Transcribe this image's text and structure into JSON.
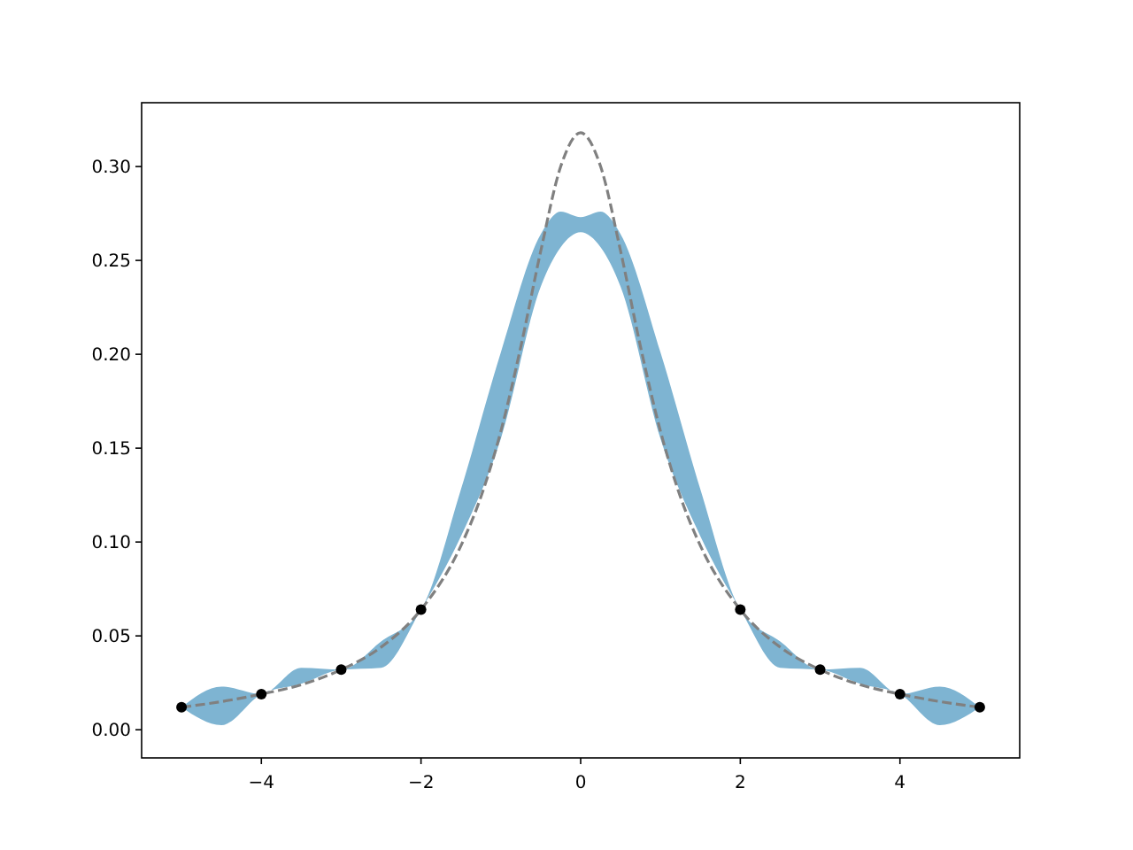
{
  "chart_data": {
    "type": "line",
    "xlim": [
      -5.5,
      5.5
    ],
    "ylim": [
      -0.015,
      0.334
    ],
    "xticks": [
      {
        "value": -4,
        "label": "−4"
      },
      {
        "value": -2,
        "label": "−2"
      },
      0,
      2,
      4
    ],
    "yticks": [
      {
        "value": 0,
        "label": "0.00"
      },
      {
        "value": 0.05,
        "label": "0.05"
      },
      {
        "value": 0.1,
        "label": "0.10"
      },
      {
        "value": 0.15,
        "label": "0.15"
      },
      {
        "value": 0.2,
        "label": "0.20"
      },
      {
        "value": 0.25,
        "label": "0.25"
      },
      {
        "value": 0.3,
        "label": "0.30"
      }
    ],
    "grid": false,
    "series": [
      {
        "color": "#7eb4d2",
        "x": [
          -5,
          -4.5,
          -4,
          -3.5,
          -3,
          -2.5,
          -2,
          -1.5,
          -1,
          -0.5,
          -0.25,
          0,
          0.25,
          0.5,
          1,
          1.5,
          2,
          2.5,
          3,
          3.5,
          4,
          4.5,
          5
        ],
        "values": [
          null,
          null,
          null,
          null,
          null,
          null,
          null,
          null,
          null,
          null,
          null,
          null,
          null,
          null,
          null,
          null,
          null,
          null,
          null,
          null,
          null,
          null,
          null
        ],
        "upper": [
          0.012,
          0.023,
          0.019,
          0.033,
          0.032,
          0.047,
          0.064,
          0.128,
          0.201,
          0.264,
          0.276,
          0.273,
          0.276,
          0.264,
          0.201,
          0.128,
          0.064,
          0.047,
          0.032,
          0.033,
          0.019,
          0.023,
          0.012
        ],
        "lower": [
          0.012,
          0.0025,
          0.019,
          0.0245,
          0.032,
          0.033,
          0.064,
          0.103,
          0.155,
          0.236,
          0.257,
          0.265,
          0.257,
          0.236,
          0.155,
          0.103,
          0.064,
          0.033,
          0.032,
          0.0245,
          0.019,
          0.0025,
          0.012
        ]
      },
      {
        "color": "#808080",
        "line_style": "dashed",
        "marker": "none",
        "x": [
          -5,
          -4.5,
          -4,
          -3.5,
          -3,
          -2.5,
          -2,
          -1.5,
          -1.25,
          -1,
          -0.75,
          -0.5,
          -0.25,
          0,
          0.25,
          0.5,
          0.75,
          1,
          1.25,
          1.5,
          2,
          2.5,
          3,
          3.5,
          4,
          4.5,
          5
        ],
        "values": [
          0.012,
          0.015,
          0.019,
          0.024,
          0.032,
          0.044,
          0.064,
          0.098,
          0.124,
          0.159,
          0.204,
          0.255,
          0.3,
          0.318,
          0.3,
          0.255,
          0.204,
          0.159,
          0.124,
          0.098,
          0.064,
          0.044,
          0.032,
          0.024,
          0.019,
          0.015,
          0.012
        ]
      },
      {
        "type": "scatter",
        "color": "#000000",
        "marker": "circle",
        "x": [
          -5,
          -4,
          -3,
          -2,
          2,
          3,
          4,
          5
        ],
        "values": [
          0.012,
          0.019,
          0.032,
          0.064,
          0.064,
          0.032,
          0.019,
          0.012
        ]
      }
    ]
  }
}
